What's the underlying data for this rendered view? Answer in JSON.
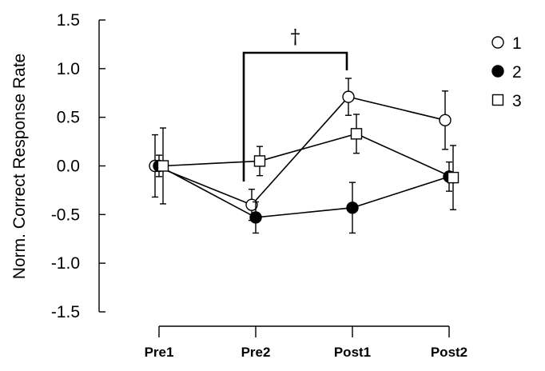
{
  "chart_data": {
    "type": "line",
    "title": "",
    "xlabel": "",
    "ylabel": "Norm. Correct Response Rate",
    "categories": [
      "Pre1",
      "Pre2",
      "Post1",
      "Post2"
    ],
    "ylim": [
      -1.5,
      1.5
    ],
    "yticks": [
      "1.5",
      "1.0",
      "0.5",
      "0.0",
      "-0.5",
      "-1.0",
      "-1.5"
    ],
    "ytick_values": [
      1.5,
      1.0,
      0.5,
      0.0,
      -0.5,
      -1.0,
      -1.5
    ],
    "legend_position": "top-right",
    "series": [
      {
        "name": "1",
        "marker": "open-circle",
        "values": [
          0.0,
          -0.4,
          0.71,
          0.47
        ],
        "err": [
          0.32,
          0.16,
          0.19,
          0.3
        ]
      },
      {
        "name": "2",
        "marker": "filled-circle",
        "values": [
          0.0,
          -0.53,
          -0.43,
          -0.11
        ],
        "err": [
          0.11,
          0.16,
          0.26,
          0.15
        ]
      },
      {
        "name": "3",
        "marker": "open-square",
        "values": [
          0.0,
          0.05,
          0.33,
          -0.12
        ],
        "err": [
          0.39,
          0.15,
          0.2,
          0.33
        ]
      }
    ],
    "annotations": [
      {
        "text": "†",
        "from_category": "Pre2",
        "to_category": "Post1"
      }
    ]
  }
}
